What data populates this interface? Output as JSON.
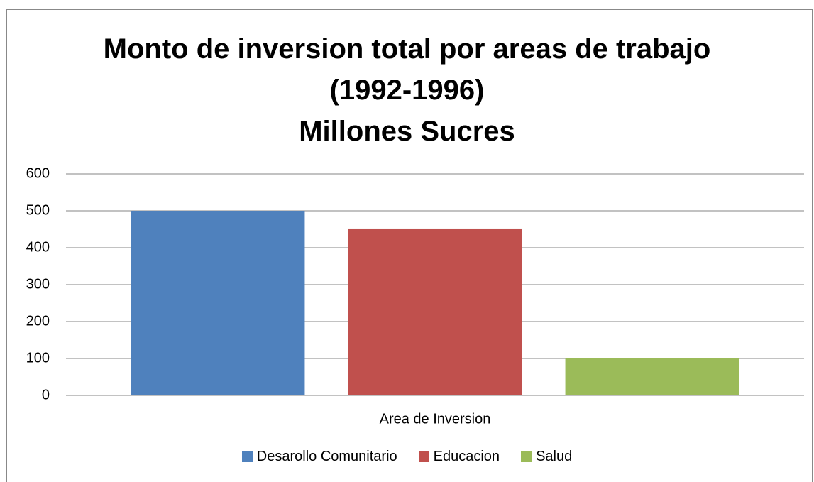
{
  "chart_data": {
    "type": "bar",
    "title": "Monto de inversion total por areas de trabajo (1992-1996)",
    "subtitle": "Millones Sucres",
    "categories": [
      "Area de Inversion"
    ],
    "series": [
      {
        "name": "Desarollo Comunitario",
        "color": "#4f81bd",
        "values": [
          500
        ]
      },
      {
        "name": "Educacion",
        "color": "#c0504d",
        "values": [
          452
        ]
      },
      {
        "name": "Salud",
        "color": "#9bbb59",
        "values": [
          101
        ]
      }
    ],
    "ylim": [
      0,
      600
    ],
    "yticks": [
      0,
      100,
      200,
      300,
      400,
      500,
      600
    ],
    "grid": true,
    "legend": "bottom"
  }
}
